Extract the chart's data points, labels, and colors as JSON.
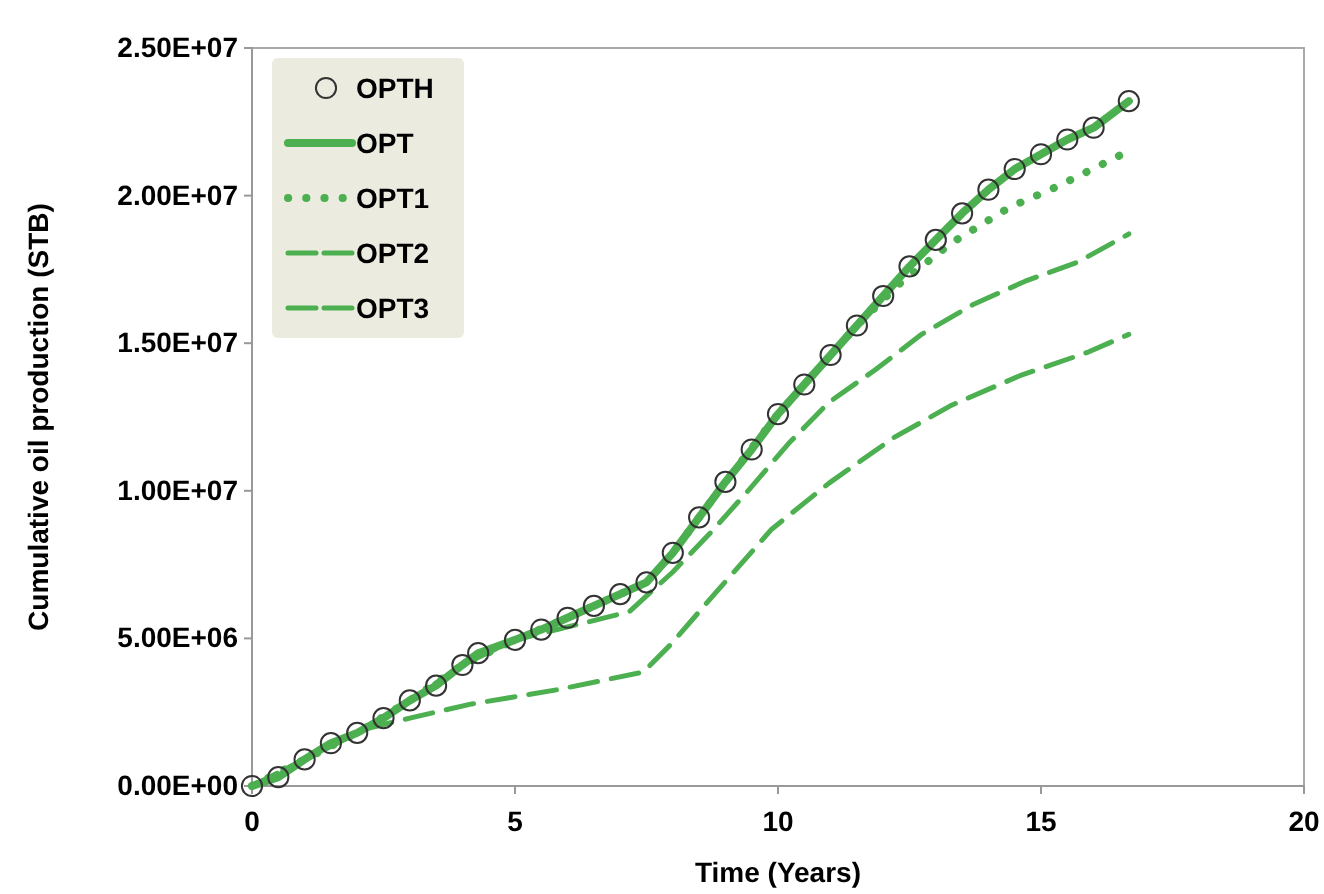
{
  "chart_data": {
    "type": "line",
    "xlabel": "Time (Years)",
    "ylabel": "Cumulative oil production (STB)",
    "xlim": [
      0,
      20
    ],
    "xticks": [
      0,
      5,
      10,
      15,
      20
    ],
    "ylim": [
      0,
      25000000
    ],
    "yticks": [
      {
        "value": 0,
        "label": "0.00E+00"
      },
      {
        "value": 5000000,
        "label": "5.00E+06"
      },
      {
        "value": 10000000,
        "label": "1.00E+07"
      },
      {
        "value": 15000000,
        "label": "1.50E+07"
      },
      {
        "value": 20000000,
        "label": "2.00E+07"
      },
      {
        "value": 25000000,
        "label": "2.50E+07"
      }
    ],
    "grid": false,
    "legend": "top left",
    "series": [
      {
        "name": "OPTH",
        "type": "scatter",
        "marker": "circle",
        "color": "#333333",
        "x": [
          0,
          0.5,
          1,
          1.5,
          2,
          2.5,
          3,
          3.5,
          4,
          4.3,
          5,
          5.5,
          6,
          6.5,
          7,
          7.5,
          8,
          8.5,
          9,
          9.5,
          10,
          10.5,
          11,
          11.5,
          12,
          12.5,
          13,
          13.5,
          14,
          14.5,
          15,
          15.5,
          16,
          16.67
        ],
        "values": [
          0,
          300000,
          900000,
          1450000,
          1800000,
          2300000,
          2900000,
          3400000,
          4100000,
          4500000,
          4950000,
          5300000,
          5700000,
          6100000,
          6500000,
          6900000,
          7900000,
          9100000,
          10300000,
          11400000,
          12600000,
          13600000,
          14600000,
          15600000,
          16600000,
          17600000,
          18500000,
          19400000,
          20200000,
          20900000,
          21400000,
          21900000,
          22300000,
          23200000
        ]
      },
      {
        "name": "OPT",
        "type": "line",
        "line_style": "solid",
        "color": "#4caf50",
        "x": [
          0,
          0.5,
          1,
          1.5,
          2,
          2.5,
          3,
          3.5,
          4,
          4.3,
          5,
          5.5,
          6,
          6.5,
          7,
          7.5,
          8,
          8.5,
          9,
          9.5,
          10,
          10.5,
          11,
          11.5,
          12,
          12.5,
          13,
          13.5,
          14,
          14.5,
          15,
          15.5,
          16,
          16.67
        ],
        "values": [
          0,
          300000,
          900000,
          1450000,
          1800000,
          2300000,
          2900000,
          3400000,
          4100000,
          4500000,
          4950000,
          5300000,
          5700000,
          6100000,
          6500000,
          6900000,
          7900000,
          9100000,
          10300000,
          11400000,
          12600000,
          13600000,
          14600000,
          15600000,
          16600000,
          17600000,
          18500000,
          19400000,
          20200000,
          20900000,
          21400000,
          21900000,
          22300000,
          23200000
        ]
      },
      {
        "name": "OPT1",
        "type": "line",
        "line_style": "dotted",
        "color": "#4caf50",
        "x": [
          0,
          1,
          2,
          3,
          4,
          5,
          6,
          7,
          7.5,
          8,
          9,
          10,
          11,
          11.5,
          12.3,
          13.3,
          14.4,
          15.3,
          16.6
        ],
        "values": [
          0,
          900000,
          1800000,
          2900000,
          4100000,
          4950000,
          5700000,
          6500000,
          6900000,
          7900000,
          10300000,
          12600000,
          14600000,
          15600000,
          17000000,
          18400000,
          19600000,
          20300000,
          21450000
        ]
      },
      {
        "name": "OPT2",
        "type": "line",
        "line_style": "dashed",
        "color": "#4caf50",
        "x": [
          0,
          1,
          2,
          3,
          4,
          5,
          5.8,
          7.17,
          8,
          8.73,
          9.48,
          10.2,
          10.97,
          11.85,
          12.73,
          13.7,
          14.7,
          15.7,
          16.67
        ],
        "values": [
          0,
          900000,
          1800000,
          2900000,
          4100000,
          4950000,
          5300000,
          5900000,
          7250000,
          8600000,
          10100000,
          11600000,
          13000000,
          14100000,
          15300000,
          16300000,
          17100000,
          17750000,
          18700000
        ]
      },
      {
        "name": "OPT3",
        "type": "line",
        "line_style": "dashed",
        "color": "#4caf50",
        "x": [
          0,
          1,
          2.15,
          3,
          4.18,
          5.8,
          7.44,
          7.98,
          8.8,
          9.88,
          10.97,
          12.2,
          13.3,
          14.6,
          15.9,
          16.67
        ],
        "values": [
          0,
          900000,
          1930000,
          2300000,
          2780000,
          3260000,
          3860000,
          4830000,
          6520000,
          8700000,
          10260000,
          11800000,
          12900000,
          13900000,
          14700000,
          15300000
        ]
      }
    ]
  }
}
